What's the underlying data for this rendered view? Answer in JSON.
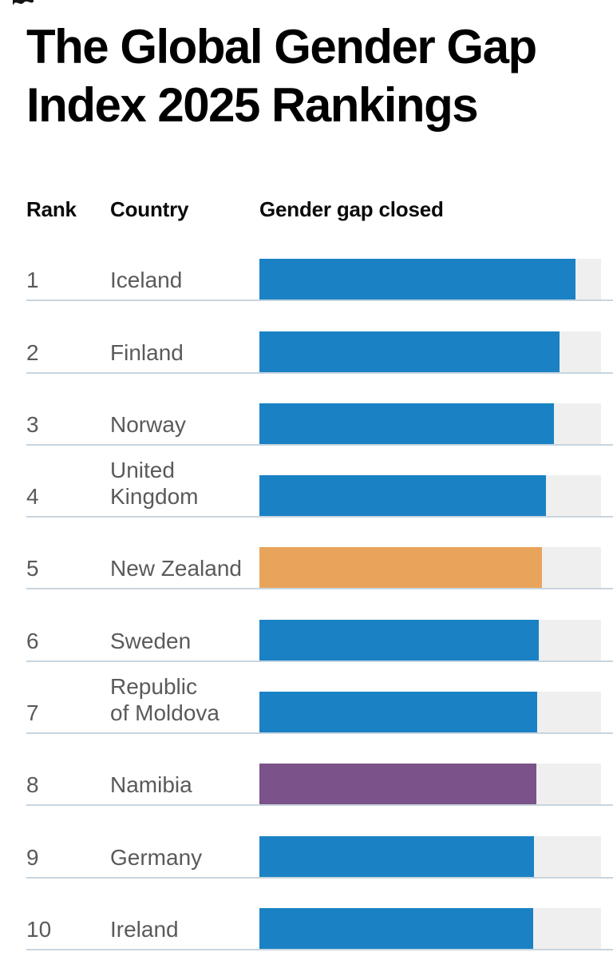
{
  "page": {
    "title": "The Global Gender Gap\nIndex 2025 Rankings"
  },
  "columns": {
    "rank_label": "Rank",
    "country_label": "Country",
    "bar_label": "Gender gap closed"
  },
  "rows": [
    {
      "rank": "1",
      "country": "Iceland",
      "value": 92.6,
      "color": "#1a82c4"
    },
    {
      "rank": "2",
      "country": "Finland",
      "value": 87.9,
      "color": "#1a82c4"
    },
    {
      "rank": "3",
      "country": "Norway",
      "value": 86.3,
      "color": "#1a82c4"
    },
    {
      "rank": "4",
      "country": "United\nKingdom",
      "value": 83.8,
      "color": "#1a82c4"
    },
    {
      "rank": "5",
      "country": "New Zealand",
      "value": 82.7,
      "color": "#e9a45b"
    },
    {
      "rank": "6",
      "country": "Sweden",
      "value": 81.7,
      "color": "#1a82c4"
    },
    {
      "rank": "7",
      "country": "Republic\nof Moldova",
      "value": 81.3,
      "color": "#1a82c4"
    },
    {
      "rank": "8",
      "country": "Namibia",
      "value": 81.1,
      "color": "#7b5289"
    },
    {
      "rank": "9",
      "country": "Germany",
      "value": 80.3,
      "color": "#1a82c4"
    },
    {
      "rank": "10",
      "country": "Ireland",
      "value": 80.1,
      "color": "#1a82c4"
    }
  ],
  "chart_data": {
    "type": "bar",
    "orientation": "horizontal",
    "title": "The Global Gender Gap Index 2025 Rankings",
    "value_label": "Gender gap closed",
    "categories": [
      "Iceland",
      "Finland",
      "Norway",
      "United Kingdom",
      "New Zealand",
      "Sweden",
      "Republic of Moldova",
      "Namibia",
      "Germany",
      "Ireland"
    ],
    "ranks": [
      1,
      2,
      3,
      4,
      5,
      6,
      7,
      8,
      9,
      10
    ],
    "values": [
      92.6,
      87.9,
      86.3,
      83.8,
      82.7,
      81.7,
      81.3,
      81.1,
      80.3,
      80.1
    ],
    "value_unit": "percent of gender gap closed",
    "xlim": [
      0,
      100
    ],
    "grid": false,
    "legend": false,
    "bar_default_color": "#1a82c4",
    "bar_highlight_colors": {
      "New Zealand": "#e9a45b",
      "Namibia": "#7b5289"
    },
    "track_color": "#efefef",
    "rule_color": "#c7d5df",
    "label_text_color": "#5a5a5c"
  }
}
